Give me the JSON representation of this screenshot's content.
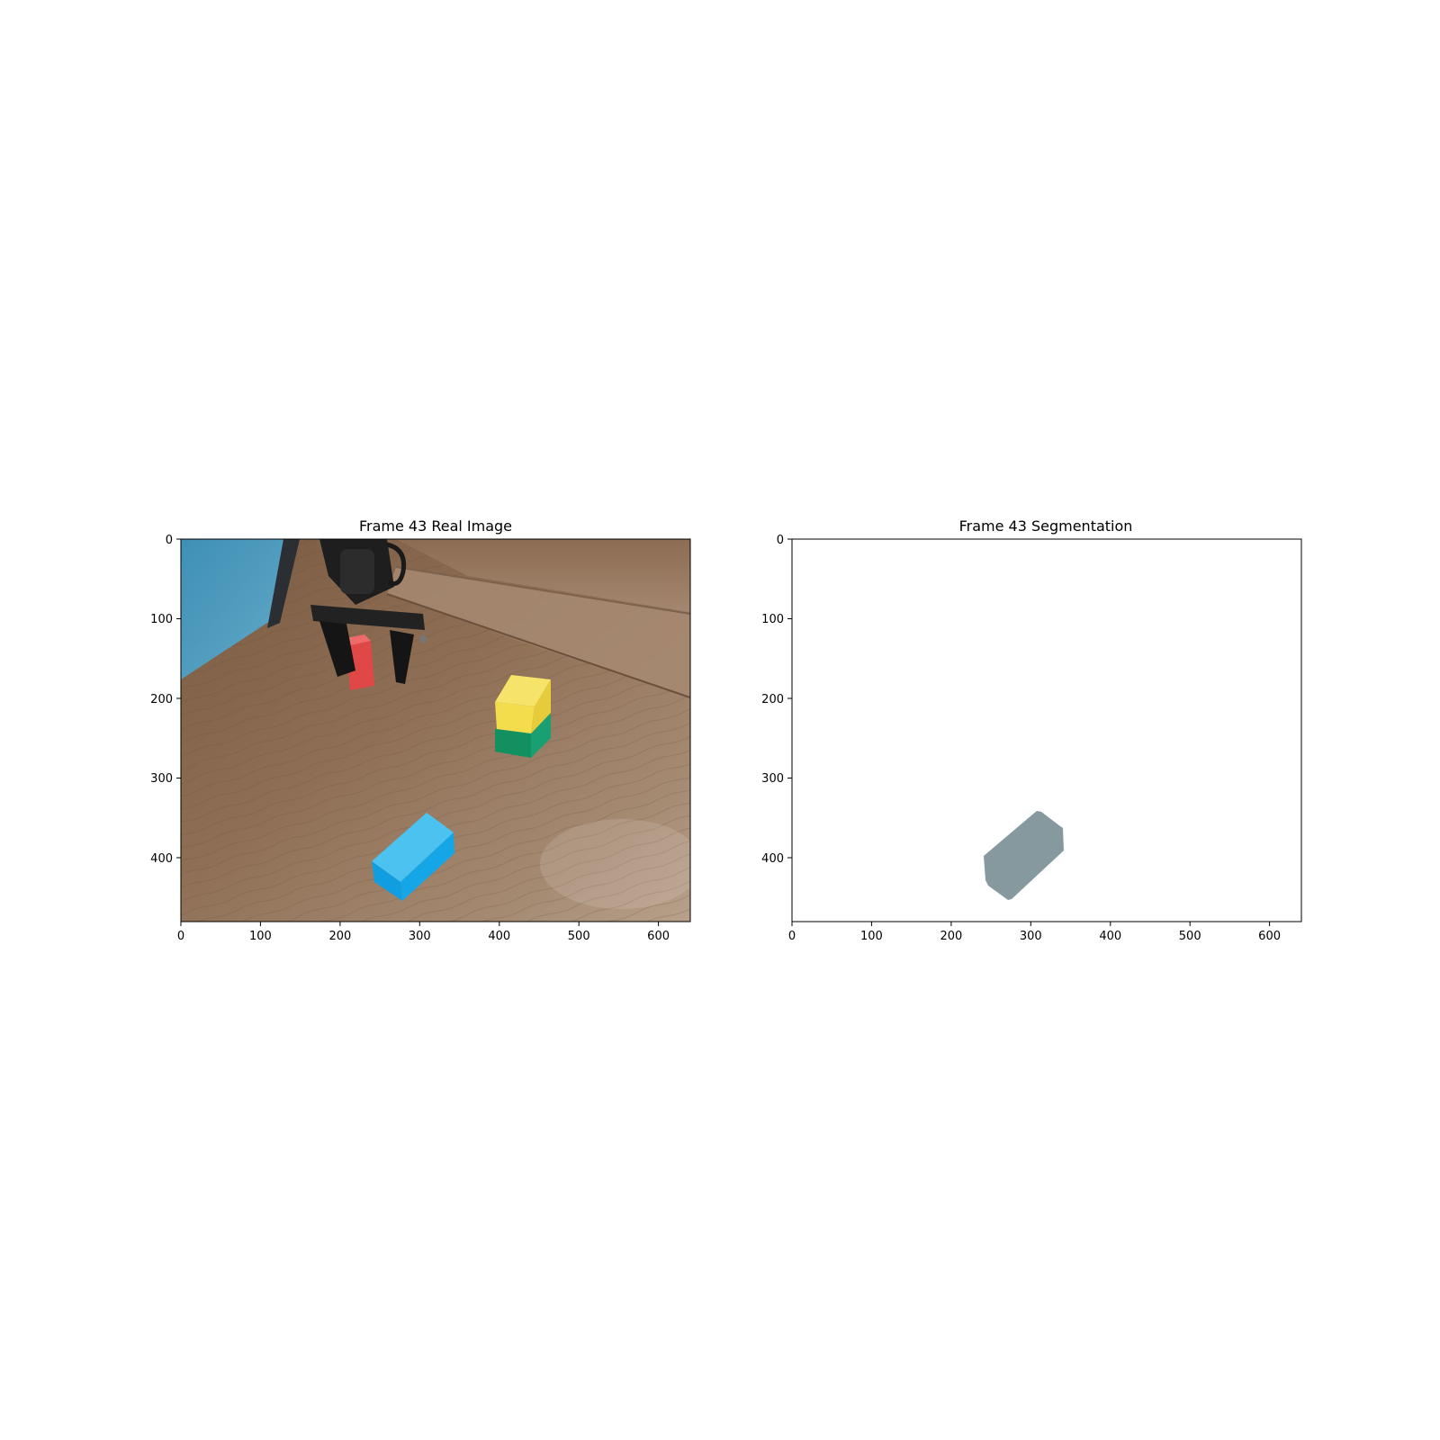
{
  "panels": [
    {
      "title": "Frame 43 Real Image",
      "x_ticks": [
        "0",
        "100",
        "200",
        "300",
        "400",
        "500",
        "600"
      ],
      "y_ticks": [
        "0",
        "100",
        "200",
        "300",
        "400"
      ],
      "x_range": [
        0,
        640
      ],
      "y_range": [
        0,
        480
      ]
    },
    {
      "title": "Frame 43 Segmentation",
      "x_ticks": [
        "0",
        "100",
        "200",
        "300",
        "400",
        "500",
        "600"
      ],
      "y_ticks": [
        "0",
        "100",
        "200",
        "300",
        "400"
      ],
      "x_range": [
        0,
        640
      ],
      "y_range": [
        0,
        480
      ]
    }
  ],
  "scene": {
    "objects": [
      "robot-gripper",
      "red-block",
      "yellow-block",
      "green-block",
      "blue-block"
    ],
    "colors": {
      "table": "#8a6a4e",
      "wall": "#4f9fc0",
      "red_block": "#e04848",
      "yellow_block": "#f3dd4c",
      "green_block": "#18a072",
      "blue_block": "#14a6e6",
      "gripper": "#1e1e1e"
    }
  },
  "segmentation": {
    "mask_color": "#85999f",
    "background_color": "#ffffff"
  }
}
